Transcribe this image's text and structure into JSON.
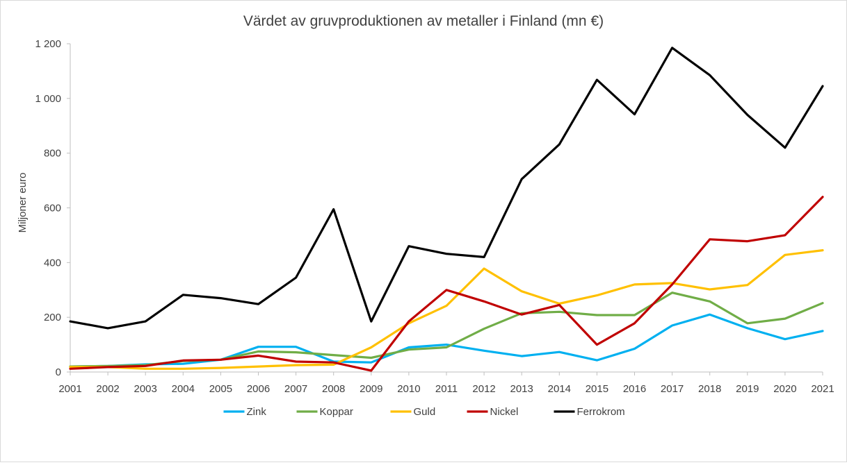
{
  "chart_data": {
    "type": "line",
    "title": "Värdet av gruvproduktionen av metaller i Finland (mn €)",
    "xlabel": "",
    "ylabel": "Miljoner euro",
    "ylim": [
      0,
      1200
    ],
    "yticks": [
      {
        "value": 0,
        "label": "0"
      },
      {
        "value": 200,
        "label": "200"
      },
      {
        "value": 400,
        "label": "400"
      },
      {
        "value": 600,
        "label": "600"
      },
      {
        "value": 800,
        "label": "800"
      },
      {
        "value": 1000,
        "label": "1 000"
      },
      {
        "value": 1200,
        "label": "1 200"
      }
    ],
    "categories": [
      "2001",
      "2002",
      "2003",
      "2004",
      "2005",
      "2006",
      "2007",
      "2008",
      "2009",
      "2010",
      "2011",
      "2012",
      "2013",
      "2014",
      "2015",
      "2016",
      "2017",
      "2018",
      "2019",
      "2020",
      "2021"
    ],
    "grid": false,
    "legend_position": "bottom",
    "series": [
      {
        "name": "Zink",
        "color": "#00b0f0",
        "values": [
          20,
          22,
          28,
          30,
          45,
          92,
          92,
          38,
          35,
          90,
          100,
          78,
          58,
          73,
          43,
          85,
          170,
          210,
          160,
          120,
          150
        ]
      },
      {
        "name": "Koppar",
        "color": "#70ad47",
        "values": [
          20,
          22,
          25,
          40,
          45,
          75,
          72,
          62,
          52,
          82,
          90,
          158,
          215,
          220,
          208,
          208,
          290,
          258,
          178,
          195,
          252
        ]
      },
      {
        "name": "Guld",
        "color": "#ffc000",
        "values": [
          18,
          18,
          12,
          12,
          15,
          20,
          25,
          27,
          90,
          178,
          242,
          378,
          295,
          250,
          280,
          320,
          325,
          302,
          318,
          428,
          445
        ]
      },
      {
        "name": "Nickel",
        "color": "#c00000",
        "values": [
          12,
          18,
          22,
          42,
          45,
          60,
          38,
          35,
          5,
          185,
          300,
          258,
          210,
          245,
          100,
          178,
          320,
          485,
          478,
          500,
          640
        ]
      },
      {
        "name": "Ferrokrom",
        "color": "#000000",
        "values": [
          185,
          160,
          185,
          282,
          270,
          248,
          345,
          595,
          185,
          460,
          432,
          420,
          705,
          832,
          1068,
          942,
          1185,
          1085,
          940,
          820,
          1045
        ]
      }
    ]
  }
}
